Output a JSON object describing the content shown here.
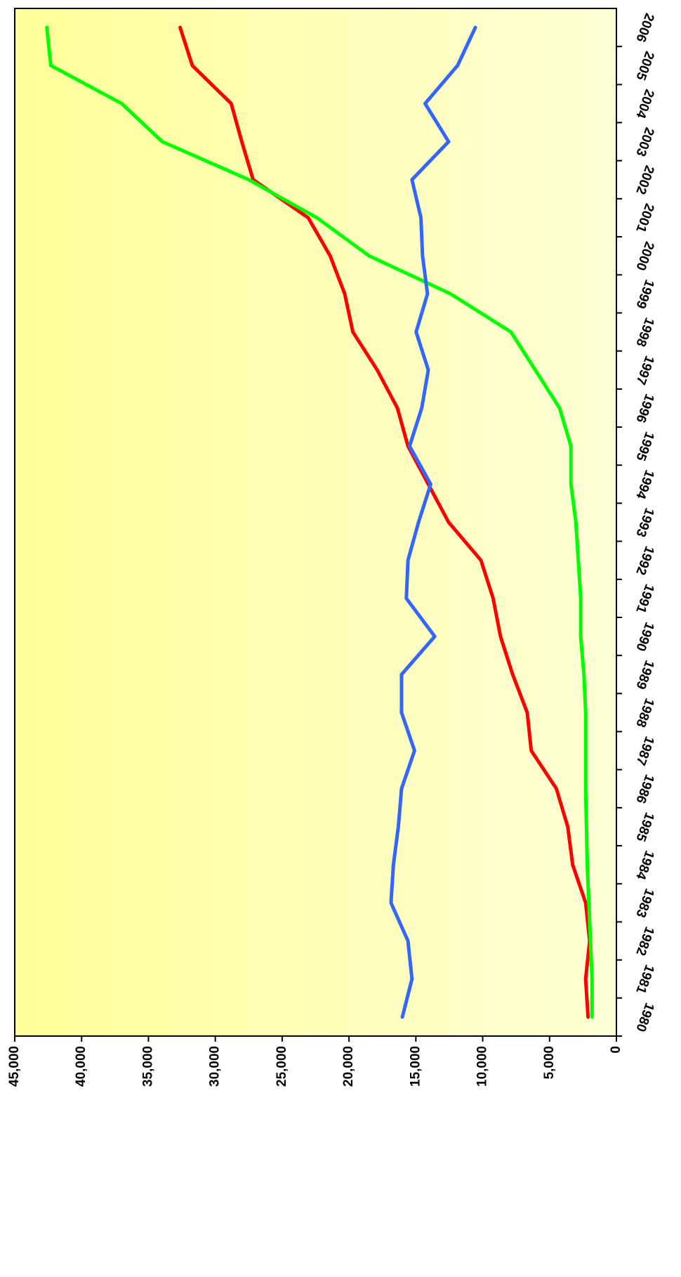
{
  "chart_data": {
    "type": "line",
    "categories": [
      "1980",
      "1981",
      "1982",
      "1983",
      "1984",
      "1985",
      "1986",
      "1987",
      "1988",
      "1989",
      "1990",
      "1991",
      "1992",
      "1993",
      "1994",
      "1995",
      "1996",
      "1997",
      "1998",
      "1999",
      "2000",
      "2001",
      "2002",
      "2003",
      "2004",
      "2005",
      "2006"
    ],
    "series": [
      {
        "color": "#ff0000",
        "values": [
          2120,
          2300,
          2000,
          2300,
          3270,
          3640,
          4490,
          6370,
          6670,
          7760,
          8670,
          9220,
          10130,
          12550,
          14070,
          15590,
          16380,
          17890,
          19710,
          20320,
          21410,
          23050,
          27170,
          28020,
          28810,
          31720,
          32630
        ]
      },
      {
        "color": "#00ff00",
        "values": [
          1820,
          1820,
          1940,
          2060,
          2180,
          2240,
          2300,
          2300,
          2300,
          2430,
          2670,
          2670,
          2850,
          3030,
          3400,
          3400,
          4250,
          6070,
          7890,
          12400,
          18500,
          22400,
          27500,
          33970,
          37000,
          42300,
          42600
        ]
      },
      {
        "color": "#3366ff",
        "values": [
          16010,
          15290,
          15590,
          16860,
          16680,
          16310,
          16070,
          15100,
          16070,
          16070,
          13590,
          15710,
          15590,
          14800,
          13890,
          15470,
          14560,
          14070,
          14980,
          14130,
          14500,
          14620,
          15290,
          12550,
          14310,
          11880,
          10550
        ]
      }
    ],
    "ylim": [
      0,
      45000
    ],
    "yticks": [
      0,
      {
        "value": 5000,
        "label": "5,000"
      },
      {
        "value": 10000,
        "label": "10,000"
      },
      {
        "value": 15000,
        "label": "15,000"
      },
      {
        "value": 20000,
        "label": "20,000"
      },
      {
        "value": 25000,
        "label": "25,000"
      },
      {
        "value": 30000,
        "label": "30,000"
      },
      {
        "value": 35000,
        "label": "35,000"
      },
      {
        "value": 40000,
        "label": "40,000"
      },
      {
        "value": 45000,
        "label": "45,000"
      }
    ]
  }
}
